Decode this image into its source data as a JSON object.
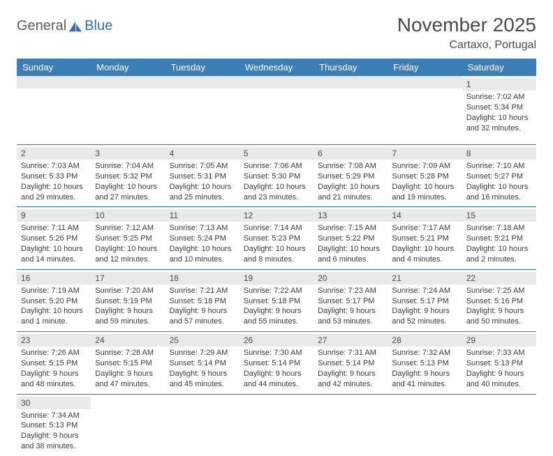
{
  "brand": {
    "part1": "General",
    "part2": "Blue"
  },
  "header": {
    "title": "November 2025",
    "location": "Cartaxo, Portugal"
  },
  "colors": {
    "header_bg": "#3b7fb6",
    "header_text": "#ffffff",
    "row_border": "#2f6fb0",
    "daynum_bg": "#e9e9e9",
    "text": "#333333",
    "logo_gray": "#5a5a5a",
    "logo_blue": "#2f6fb0"
  },
  "columns": [
    "Sunday",
    "Monday",
    "Tuesday",
    "Wednesday",
    "Thursday",
    "Friday",
    "Saturday"
  ],
  "weeks": [
    [
      null,
      null,
      null,
      null,
      null,
      null,
      {
        "n": "1",
        "sr": "7:02 AM",
        "ss": "5:34 PM",
        "dl": "10 hours and 32 minutes."
      }
    ],
    [
      {
        "n": "2",
        "sr": "7:03 AM",
        "ss": "5:33 PM",
        "dl": "10 hours and 29 minutes."
      },
      {
        "n": "3",
        "sr": "7:04 AM",
        "ss": "5:32 PM",
        "dl": "10 hours and 27 minutes."
      },
      {
        "n": "4",
        "sr": "7:05 AM",
        "ss": "5:31 PM",
        "dl": "10 hours and 25 minutes."
      },
      {
        "n": "5",
        "sr": "7:06 AM",
        "ss": "5:30 PM",
        "dl": "10 hours and 23 minutes."
      },
      {
        "n": "6",
        "sr": "7:08 AM",
        "ss": "5:29 PM",
        "dl": "10 hours and 21 minutes."
      },
      {
        "n": "7",
        "sr": "7:09 AM",
        "ss": "5:28 PM",
        "dl": "10 hours and 19 minutes."
      },
      {
        "n": "8",
        "sr": "7:10 AM",
        "ss": "5:27 PM",
        "dl": "10 hours and 16 minutes."
      }
    ],
    [
      {
        "n": "9",
        "sr": "7:11 AM",
        "ss": "5:26 PM",
        "dl": "10 hours and 14 minutes."
      },
      {
        "n": "10",
        "sr": "7:12 AM",
        "ss": "5:25 PM",
        "dl": "10 hours and 12 minutes."
      },
      {
        "n": "11",
        "sr": "7:13 AM",
        "ss": "5:24 PM",
        "dl": "10 hours and 10 minutes."
      },
      {
        "n": "12",
        "sr": "7:14 AM",
        "ss": "5:23 PM",
        "dl": "10 hours and 8 minutes."
      },
      {
        "n": "13",
        "sr": "7:15 AM",
        "ss": "5:22 PM",
        "dl": "10 hours and 6 minutes."
      },
      {
        "n": "14",
        "sr": "7:17 AM",
        "ss": "5:21 PM",
        "dl": "10 hours and 4 minutes."
      },
      {
        "n": "15",
        "sr": "7:18 AM",
        "ss": "5:21 PM",
        "dl": "10 hours and 2 minutes."
      }
    ],
    [
      {
        "n": "16",
        "sr": "7:19 AM",
        "ss": "5:20 PM",
        "dl": "10 hours and 1 minute."
      },
      {
        "n": "17",
        "sr": "7:20 AM",
        "ss": "5:19 PM",
        "dl": "9 hours and 59 minutes."
      },
      {
        "n": "18",
        "sr": "7:21 AM",
        "ss": "5:18 PM",
        "dl": "9 hours and 57 minutes."
      },
      {
        "n": "19",
        "sr": "7:22 AM",
        "ss": "5:18 PM",
        "dl": "9 hours and 55 minutes."
      },
      {
        "n": "20",
        "sr": "7:23 AM",
        "ss": "5:17 PM",
        "dl": "9 hours and 53 minutes."
      },
      {
        "n": "21",
        "sr": "7:24 AM",
        "ss": "5:17 PM",
        "dl": "9 hours and 52 minutes."
      },
      {
        "n": "22",
        "sr": "7:25 AM",
        "ss": "5:16 PM",
        "dl": "9 hours and 50 minutes."
      }
    ],
    [
      {
        "n": "23",
        "sr": "7:26 AM",
        "ss": "5:15 PM",
        "dl": "9 hours and 48 minutes."
      },
      {
        "n": "24",
        "sr": "7:28 AM",
        "ss": "5:15 PM",
        "dl": "9 hours and 47 minutes."
      },
      {
        "n": "25",
        "sr": "7:29 AM",
        "ss": "5:14 PM",
        "dl": "9 hours and 45 minutes."
      },
      {
        "n": "26",
        "sr": "7:30 AM",
        "ss": "5:14 PM",
        "dl": "9 hours and 44 minutes."
      },
      {
        "n": "27",
        "sr": "7:31 AM",
        "ss": "5:14 PM",
        "dl": "9 hours and 42 minutes."
      },
      {
        "n": "28",
        "sr": "7:32 AM",
        "ss": "5:13 PM",
        "dl": "9 hours and 41 minutes."
      },
      {
        "n": "29",
        "sr": "7:33 AM",
        "ss": "5:13 PM",
        "dl": "9 hours and 40 minutes."
      }
    ],
    [
      {
        "n": "30",
        "sr": "7:34 AM",
        "ss": "5:13 PM",
        "dl": "9 hours and 38 minutes."
      },
      null,
      null,
      null,
      null,
      null,
      null
    ]
  ],
  "labels": {
    "sunrise": "Sunrise:",
    "sunset": "Sunset:",
    "daylight": "Daylight:"
  }
}
